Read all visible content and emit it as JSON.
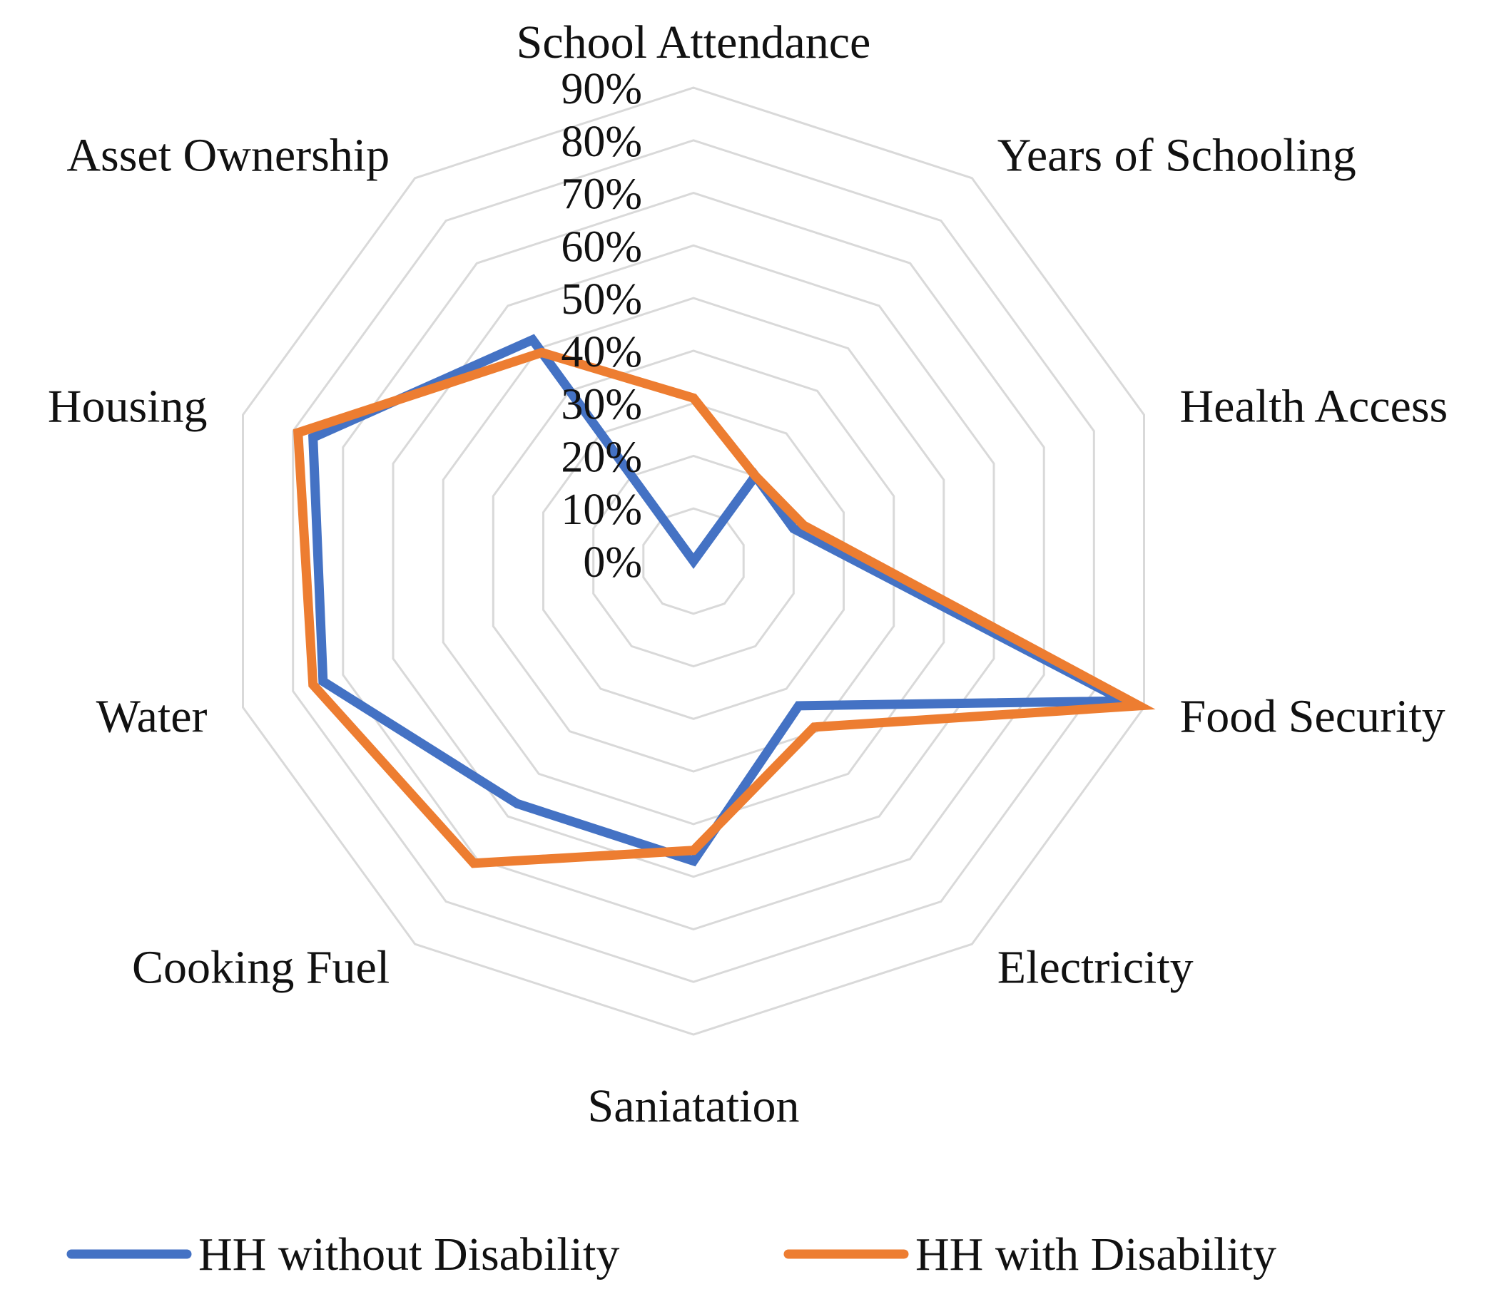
{
  "chart_data": {
    "type": "radar",
    "title": "",
    "categories": [
      "School Attendance",
      "Years of Schooling",
      "Health Access",
      "Food Security",
      "Electricity",
      "Saniatation",
      "Cooking Fuel",
      "Water",
      "Housing",
      "Asset Ownership"
    ],
    "series": [
      {
        "name": "HH without Disability",
        "color": "#4472C4",
        "values": [
          0.0,
          20.0,
          20.0,
          86.0,
          34.0,
          57.0,
          57.0,
          74.0,
          76.0,
          52.0
        ]
      },
      {
        "name": "HH with Disability",
        "color": "#ED7D31",
        "values": [
          31.0,
          20.0,
          22.0,
          89.0,
          39.0,
          55.0,
          71.0,
          76.0,
          79.0,
          49.0
        ]
      }
    ],
    "r_ticks": [
      "0%",
      "10%",
      "20%",
      "30%",
      "40%",
      "50%",
      "60%",
      "70%",
      "80%",
      "90%"
    ],
    "r_range": [
      0,
      90
    ],
    "grid": true,
    "grid_color": "#D9D9D9",
    "legend_position": "bottom"
  }
}
